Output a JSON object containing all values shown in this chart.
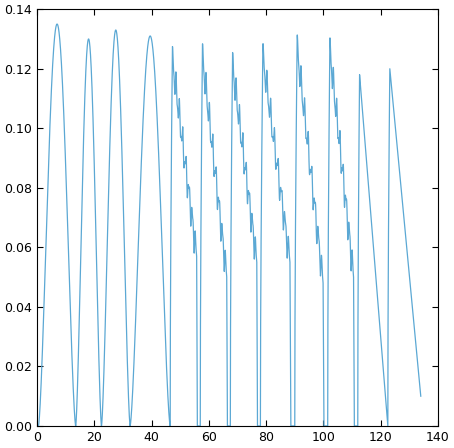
{
  "xlim": [
    0,
    140
  ],
  "ylim": [
    0,
    0.14
  ],
  "xticks": [
    0,
    20,
    40,
    60,
    80,
    100,
    120,
    140
  ],
  "yticks": [
    0,
    0.02,
    0.04,
    0.06,
    0.08,
    0.1,
    0.12,
    0.14
  ],
  "line_color": "#5ba8d4",
  "linewidth": 0.9,
  "bg_color": "#ffffff",
  "figsize": [
    4.54,
    4.48
  ],
  "dpi": 100
}
